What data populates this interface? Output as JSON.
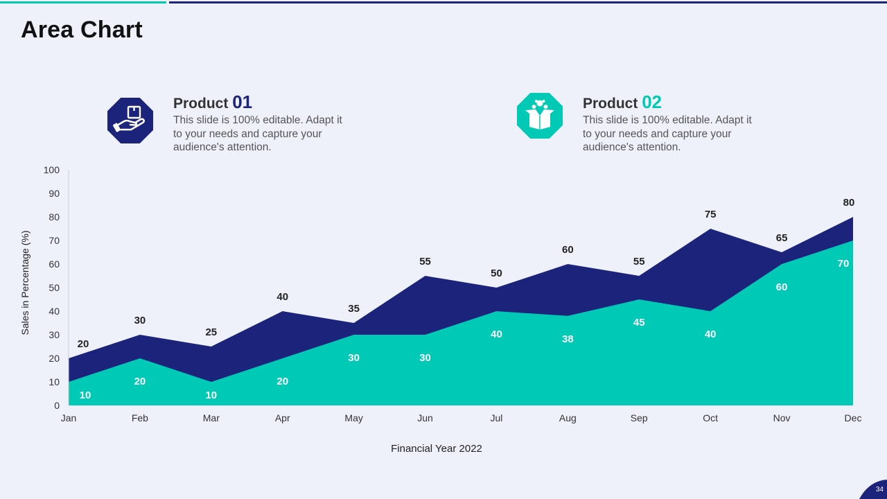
{
  "slide": {
    "title": "Area Chart",
    "page_number": "34",
    "accent_teal": "#00c9b6",
    "accent_navy": "#1b237a"
  },
  "products": [
    {
      "label": "Product",
      "number": "01",
      "description": "This slide is 100% editable. Adapt it to your needs and capture your audience's attention.",
      "icon": "hand-holding-box-icon",
      "color": "#1b237a"
    },
    {
      "label": "Product",
      "number": "02",
      "description": "This slide is 100% editable. Adapt it to your needs and capture your audience's attention.",
      "icon": "open-box-icon",
      "color": "#00c9b6"
    }
  ],
  "chart_data": {
    "type": "area",
    "categories": [
      "Jan",
      "Feb",
      "Mar",
      "Apr",
      "May",
      "Jun",
      "Jul",
      "Aug",
      "Sep",
      "Oct",
      "Nov",
      "Dec"
    ],
    "series": [
      {
        "values": [
          20,
          30,
          25,
          40,
          35,
          55,
          50,
          60,
          55,
          75,
          65,
          80
        ],
        "color": "#1b237a",
        "label_color": "#222222"
      },
      {
        "values": [
          10,
          20,
          10,
          20,
          30,
          30,
          40,
          38,
          45,
          40,
          60,
          70
        ],
        "color": "#00c9b6",
        "label_color": "#ffffff"
      }
    ],
    "xlabel": "Financial Year 2022",
    "ylabel": "Sales in Percentage (%)",
    "ylim": [
      0,
      100
    ],
    "yticks": [
      0,
      10,
      20,
      30,
      40,
      50,
      60,
      70,
      80,
      90,
      100
    ],
    "grid": false,
    "legend": "none"
  }
}
